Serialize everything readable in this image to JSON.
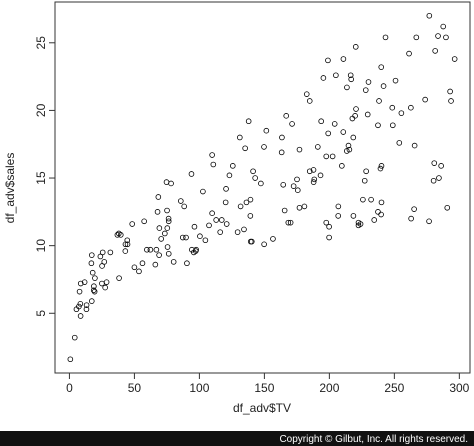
{
  "chart_data": {
    "type": "scatter",
    "x_label": "df_adv$TV",
    "y_label": "df_adv$sales",
    "footer": "Copyright © Gilbut, Inc. All rights reserved.",
    "color": "#000000",
    "xlim": [
      -11.1,
      308.2
    ],
    "ylim": [
      0.584,
      28.016
    ],
    "xticks": [
      0,
      50,
      100,
      150,
      200,
      250,
      300
    ],
    "yticks": [
      5,
      10,
      15,
      20,
      25
    ],
    "x": [
      230.1,
      44.5,
      17.2,
      151.5,
      180.8,
      8.7,
      57.5,
      120.2,
      8.6,
      199.8,
      66.1,
      214.7,
      23.8,
      97.5,
      204.1,
      195.4,
      67.8,
      281.4,
      69.2,
      147.3,
      218.4,
      237.4,
      13.2,
      228.3,
      62.3,
      262.9,
      142.9,
      240.1,
      248.8,
      70.6,
      292.9,
      112.9,
      97.2,
      265.6,
      95.7,
      290.7,
      266.9,
      74.7,
      43.1,
      228,
      202.5,
      177,
      293.6,
      206.9,
      25.1,
      175.1,
      89.7,
      239.9,
      227.2,
      66.9,
      199.8,
      100.4,
      216.4,
      182.6,
      262.7,
      198.9,
      7.3,
      136.2,
      210.8,
      210.7,
      53.5,
      261.3,
      239.3,
      102.7,
      131.1,
      69,
      31.5,
      139.3,
      237.4,
      216.8,
      199.1,
      109.8,
      26.8,
      129.4,
      213.4,
      16.9,
      27.5,
      120.5,
      5.4,
      116,
      76.4,
      239.8,
      75.3,
      68.4,
      213.5,
      193.2,
      76.3,
      110.7,
      88.3,
      109.8,
      134.3,
      28.6,
      217.7,
      250.9,
      107.4,
      163.3,
      197.6,
      184.9,
      289.7,
      135.2,
      222.4,
      296.4,
      280.2,
      187.9,
      238.2,
      137.9,
      25,
      90.4,
      13.1,
      255.4,
      225.8,
      241.7,
      175.7,
      209.6,
      78.2,
      75.1,
      139.2,
      76.4,
      125.7,
      19.4,
      141.3,
      18.8,
      224,
      123.1,
      229.5,
      87.2,
      7.8,
      80.2,
      220.3,
      59.6,
      0.7,
      265.2,
      8.4,
      219.8,
      36.9,
      48.3,
      25.6,
      273.7,
      43,
      184.9,
      73.4,
      193.7,
      220.5,
      104.6,
      96.2,
      140.3,
      240.1,
      243.2,
      38,
      44.7,
      280.7,
      121,
      197.6,
      171.3,
      187.8,
      4.1,
      93.9,
      149.8,
      11.7,
      131.7,
      172.5,
      85.7,
      188.4,
      163.5,
      117.2,
      234.5,
      17.9,
      206.8,
      215.4,
      284.3,
      50,
      164.5,
      19.6,
      168.4,
      222.4,
      276.9,
      248.4,
      170.2,
      276.7,
      165.6,
      156.6,
      218.5,
      56.2,
      287.6,
      253.8,
      205,
      139.5,
      191.1,
      286,
      18.7,
      39.5,
      75.5,
      17.2,
      166.8,
      149.7,
      38.2,
      94.2,
      177,
      283.6,
      232.1
    ],
    "values": [
      22.1,
      10.4,
      9.3,
      18.5,
      12.9,
      7.2,
      11.8,
      13.2,
      4.8,
      10.6,
      8.6,
      17.4,
      9.2,
      9.7,
      19,
      22.4,
      12.5,
      24.4,
      11.3,
      14.6,
      18,
      12.5,
      5.6,
      15.5,
      9.7,
      12,
      15,
      15.9,
      18.9,
      10.5,
      21.4,
      11.9,
      9.6,
      17.4,
      9.5,
      12.8,
      25.4,
      14.7,
      10.1,
      21.5,
      16.6,
      17.1,
      20.7,
      12.9,
      8.5,
      14.9,
      10.6,
      23.2,
      14.8,
      9.7,
      11.4,
      10.7,
      22.6,
      21.2,
      20.2,
      23.7,
      5.5,
      13.2,
      23.8,
      18.4,
      8.1,
      24.2,
      15.7,
      14,
      18,
      9.3,
      9.5,
      13.4,
      18.9,
      22.3,
      18.3,
      12.4,
      8.8,
      11,
      17,
      8.7,
      6.9,
      14.2,
      5.3,
      11,
      11.8,
      12.3,
      11.3,
      13.6,
      21.7,
      15.2,
      12,
      16,
      12.9,
      16.7,
      11.2,
      7.3,
      19.4,
      22.2,
      11.5,
      16.9,
      11.7,
      15.5,
      25.4,
      17.2,
      11.7,
      23.8,
      14.8,
      14.7,
      20.7,
      19.2,
      7.2,
      8.7,
      5.3,
      19.8,
      13.4,
      21.8,
      14.1,
      15.9,
      14.6,
      12.6,
      12.2,
      9.4,
      15.9,
      6.6,
      15.5,
      7,
      11.6,
      15.2,
      19.7,
      10.6,
      6.6,
      8.8,
      24.7,
      9.7,
      1.6,
      12.7,
      5.7,
      19.6,
      10.8,
      11.6,
      9.5,
      20.8,
      9.6,
      20.7,
      10.9,
      19.2,
      20.1,
      10.4,
      11.4,
      10.3,
      13.2,
      25.4,
      10.9,
      10.1,
      16.1,
      11.6,
      16.6,
      19,
      15.6,
      3.2,
      15.3,
      10.1,
      7.3,
      12.9,
      14.4,
      13.3,
      14.9,
      18,
      11.9,
      11.9,
      8,
      12.2,
      17.1,
      15,
      8.4,
      14.5,
      7.6,
      11.7,
      11.5,
      27,
      20.2,
      11.7,
      11.8,
      12.6,
      10.5,
      12.2,
      8.7,
      26.2,
      17.6,
      22.6,
      10.3,
      17.3,
      15.9,
      6.7,
      10.8,
      9.9,
      5.9,
      19.6,
      17.3,
      7.6,
      9.7,
      12.8,
      25.5,
      13.4
    ]
  }
}
